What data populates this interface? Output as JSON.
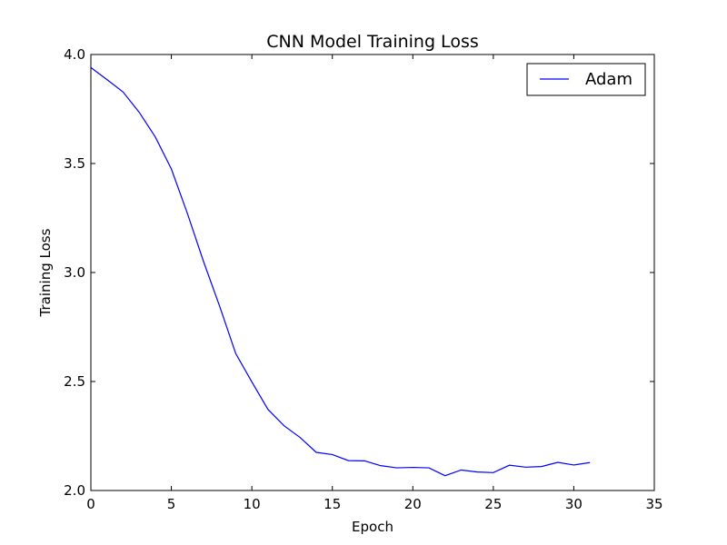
{
  "chart_data": {
    "type": "line",
    "title": "CNN Model Training Loss",
    "xlabel": "Epoch",
    "ylabel": "Training Loss",
    "xlim": [
      0,
      35
    ],
    "ylim": [
      2.0,
      4.0
    ],
    "xticks": [
      "0",
      "5",
      "10",
      "15",
      "20",
      "25",
      "30",
      "35"
    ],
    "yticks": [
      "2.0",
      "2.5",
      "3.0",
      "3.5",
      "4.0"
    ],
    "grid": false,
    "legend_position": "top-right",
    "series": [
      {
        "name": "Adam",
        "color": "#0000ff",
        "x": [
          0,
          1,
          2,
          3,
          4,
          5,
          6,
          7,
          8,
          9,
          10,
          11,
          12,
          13,
          14,
          15,
          16,
          17,
          18,
          19,
          20,
          21,
          22,
          23,
          24,
          25,
          26,
          27,
          28,
          29,
          30,
          31
        ],
        "y": [
          3.94,
          3.885,
          3.828,
          3.735,
          3.622,
          3.475,
          3.27,
          3.05,
          2.845,
          2.628,
          2.498,
          2.372,
          2.297,
          2.243,
          2.175,
          2.165,
          2.137,
          2.136,
          2.114,
          2.104,
          2.106,
          2.104,
          2.068,
          2.094,
          2.085,
          2.082,
          2.116,
          2.107,
          2.11,
          2.129,
          2.117,
          2.128
        ]
      }
    ]
  }
}
